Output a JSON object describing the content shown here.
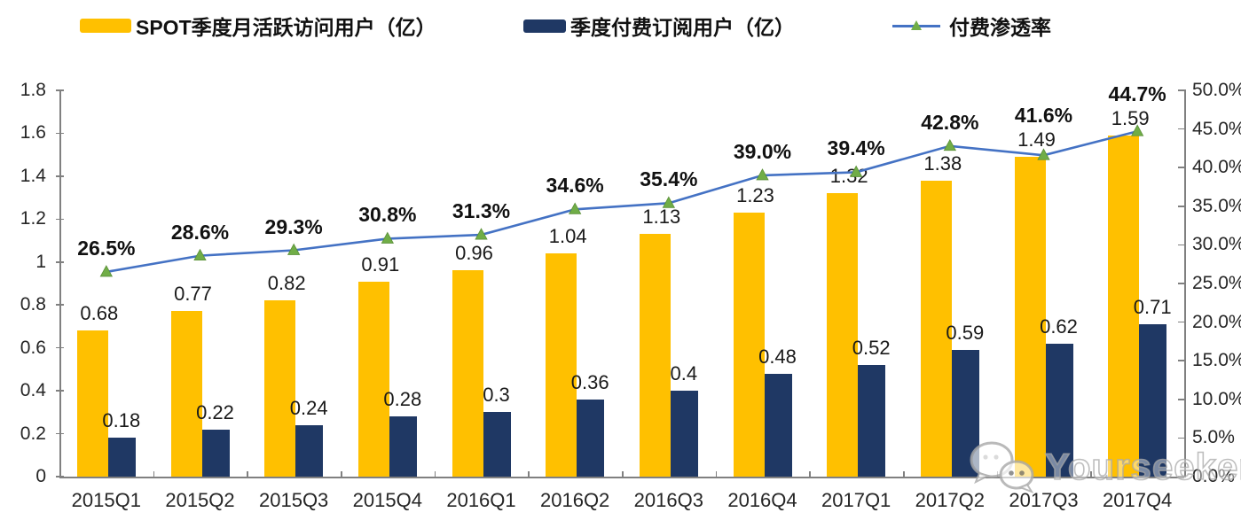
{
  "legend": {
    "items": [
      {
        "label": "SPOT季度月活跃访问用户（亿）",
        "swatch": "bar",
        "color": "#FFC000"
      },
      {
        "label": "季度付费订阅用户（亿）",
        "swatch": "bar",
        "color": "#1F3864"
      },
      {
        "label": "付费渗透率",
        "swatch": "line",
        "color": "#4472C4",
        "marker_color": "#70AD47"
      }
    ]
  },
  "watermark": {
    "text": "Yourseeker",
    "icon": "wechat-icon"
  },
  "colors": {
    "mau_bar": "#FFC000",
    "subscriber_bar": "#1F3864",
    "penetration_line": "#4472C4",
    "penetration_marker": "#70AD47",
    "axis": "#808080",
    "text": "#1a1a1a"
  },
  "chart_data": {
    "type": "bar",
    "subtype": "clustered-bars-with-line-dual-axis",
    "title": "",
    "xlabel": "",
    "ylabel_left": "",
    "ylabel_right": "",
    "grid": false,
    "legend_position": "top",
    "categories": [
      "2015Q1",
      "2015Q2",
      "2015Q3",
      "2015Q4",
      "2016Q1",
      "2016Q2",
      "2016Q3",
      "2016Q4",
      "2017Q1",
      "2017Q2",
      "2017Q3",
      "2017Q4"
    ],
    "series": [
      {
        "name": "SPOT季度月活跃访问用户（亿）",
        "type": "bar",
        "axis": "left",
        "color": "#FFC000",
        "values": [
          "0.68",
          "0.77",
          "0.82",
          "0.91",
          "0.96",
          "1.04",
          "1.13",
          "1.23",
          "1.32",
          "1.38",
          "1.49",
          "1.59"
        ]
      },
      {
        "name": "季度付费订阅用户（亿）",
        "type": "bar",
        "axis": "left",
        "color": "#1F3864",
        "values": [
          "0.18",
          "0.22",
          "0.24",
          "0.28",
          "0.3",
          "0.36",
          "0.4",
          "0.48",
          "0.52",
          "0.59",
          "0.62",
          "0.71"
        ]
      },
      {
        "name": "付费渗透率",
        "type": "line",
        "axis": "right",
        "color": "#4472C4",
        "marker": "triangle",
        "marker_color": "#70AD47",
        "values": [
          26.5,
          28.6,
          29.3,
          30.8,
          31.3,
          34.6,
          35.4,
          39.0,
          39.4,
          42.8,
          41.6,
          44.7
        ],
        "label_suffix": "%"
      }
    ],
    "left_axis": {
      "min": 0,
      "max": 1.8,
      "ticks": [
        "1.8",
        "1.6",
        "1.4",
        "1.2",
        "1",
        "0.8",
        "0.6",
        "0.4",
        "0.2",
        "0"
      ]
    },
    "right_axis": {
      "min": 0,
      "max": 50,
      "ticks": [
        "50.0%",
        "45.0%",
        "40.0%",
        "35.0%",
        "30.0%",
        "25.0%",
        "20.0%",
        "15.0%",
        "10.0%",
        "5.0%",
        "0.0%"
      ]
    }
  }
}
